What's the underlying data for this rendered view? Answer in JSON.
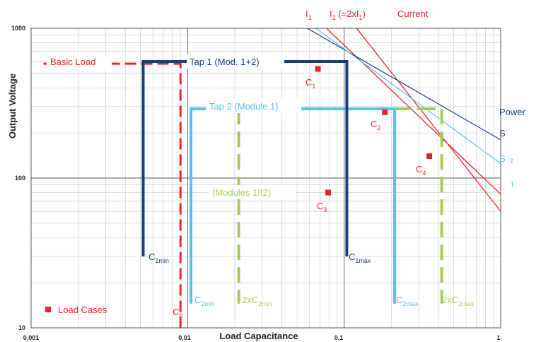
{
  "chart_data": {
    "type": "line",
    "xscale": "log",
    "yscale": "log",
    "xlim": [
      0.001,
      1
    ],
    "ylim": [
      10,
      1000
    ],
    "grid": true,
    "xlabel": "Load Capacitance",
    "ylabel": "Output Voltage",
    "x_ticks": [
      "0,001",
      "0,01",
      "0,1",
      "1"
    ],
    "y_ticks": [
      "10",
      "100",
      "1000"
    ],
    "colors": {
      "red": "#e8262a",
      "dark_blue": "#1a3d7c",
      "light_blue": "#5bc0ea",
      "green": "#a8cc5c",
      "grid": "#c8c8c8",
      "axis": "#555555"
    },
    "header": {
      "i1_main": "I",
      "i1_sub": "1",
      "i2_main": "I",
      "i2_sub": "2",
      "i2_paren_open": " (=2xI",
      "i2_paren_sub": "1",
      "i2_paren_close": ")",
      "current": "Current",
      "power": "Power",
      "s1": "S",
      "s2_main": "S",
      "s2_sub": "2",
      "s2_sub_below": "1"
    },
    "region_labels": {
      "basic_load": "Basic Load",
      "tap1": "Tap 1 (Mod. 1+2)",
      "tap2": "Tap 2 (Module 1)",
      "modules": "(Modules 1II2)"
    },
    "limit_labels": {
      "c0_main": "C",
      "c0_sub": "0",
      "c1min_main": "C",
      "c1min_sub": "1min",
      "c1max_main": "C",
      "c1max_sub": "1max",
      "c2min_main": "C",
      "c2min_sub": "2min",
      "c2max_main": "C",
      "c2max_sub": "2max",
      "c2min2_main": "2xC",
      "c2min2_sub": "2min",
      "c2max2_main": "2xC",
      "c2max2_sub": "2max"
    },
    "lines": {
      "current_I1": [
        [
          0.077,
          1000
        ],
        [
          1,
          78
        ]
      ],
      "current_I2": [
        [
          0.12,
          1000
        ],
        [
          1,
          60
        ]
      ],
      "power_S1": [
        [
          0.058,
          1000
        ],
        [
          1,
          180
        ]
      ],
      "power_S2": [
        [
          0.066,
          1000
        ],
        [
          1,
          125
        ]
      ]
    },
    "profiles": {
      "basic_load": {
        "y": 580,
        "x_start": 0.0012,
        "x_corner": 0.009,
        "y_end": 10
      },
      "tap1": {
        "y": 600,
        "x_min": 0.0052,
        "x_max": 0.104,
        "y_end": 30
      },
      "tap2": {
        "y": 290,
        "x_min": 0.0105,
        "x_max": 0.21,
        "y_end": 14.5
      },
      "tap2_double": {
        "y": 290,
        "x_min": 0.0212,
        "x_max": 0.42,
        "y_end": 14.5
      }
    },
    "load_cases": {
      "legend": "Load Cases",
      "points": [
        {
          "name_main": "C",
          "name_sub": "1",
          "x": 0.068,
          "y": 535
        },
        {
          "name_main": "C",
          "name_sub": "2",
          "x": 0.182,
          "y": 275
        },
        {
          "name_main": "C",
          "name_sub": "3",
          "x": 0.079,
          "y": 80
        },
        {
          "name_main": "C",
          "name_sub": "4",
          "x": 0.35,
          "y": 140
        }
      ]
    }
  }
}
